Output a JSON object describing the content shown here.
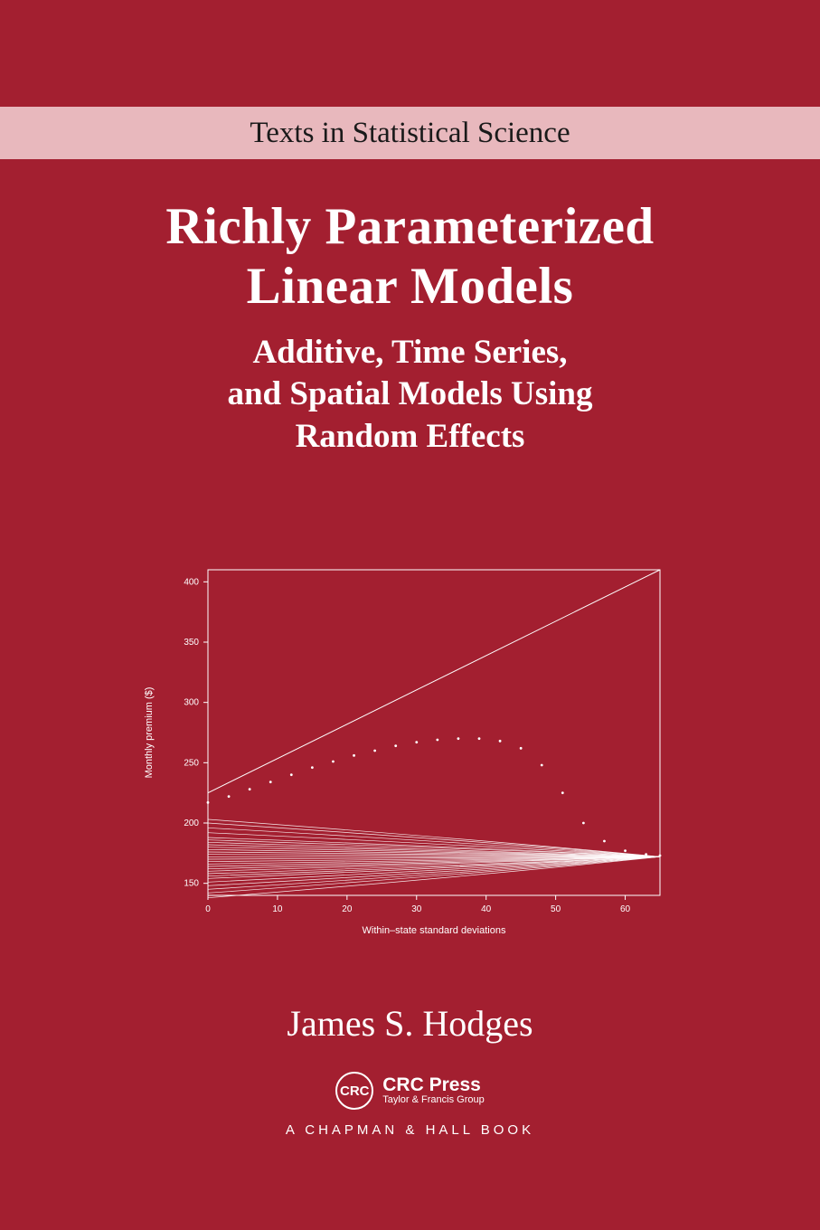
{
  "series": {
    "label": "Texts in Statistical Science"
  },
  "title": {
    "line1": "Richly Parameterized",
    "line2": "Linear Models",
    "sub1": "Additive, Time Series,",
    "sub2": "and Spatial Models Using",
    "sub3": "Random Effects"
  },
  "author": "James S. Hodges",
  "publisher": {
    "logo_text": "CRC",
    "name": "CRC Press",
    "tagline": "Taylor & Francis Group",
    "imprint": "A CHAPMAN & HALL BOOK"
  },
  "chart": {
    "type": "line",
    "xlabel": "Within–state standard deviations",
    "ylabel": "Monthly premium ($)",
    "xlim": [
      0,
      65
    ],
    "ylim": [
      140,
      410
    ],
    "xticks": [
      0,
      10,
      20,
      30,
      40,
      50,
      60
    ],
    "yticks": [
      150,
      200,
      250,
      300,
      350,
      400
    ],
    "background_color": "#a31f30",
    "line_color": "#ffffff",
    "axis_color": "#ffffff",
    "text_color": "#ffffff",
    "label_fontsize": 11,
    "tick_fontsize": 10,
    "upper_line": {
      "start": [
        0,
        225
      ],
      "end": [
        65,
        410
      ]
    },
    "dotted_curve": [
      [
        0,
        217
      ],
      [
        3,
        222
      ],
      [
        6,
        228
      ],
      [
        9,
        234
      ],
      [
        12,
        240
      ],
      [
        15,
        246
      ],
      [
        18,
        251
      ],
      [
        21,
        256
      ],
      [
        24,
        260
      ],
      [
        27,
        264
      ],
      [
        30,
        267
      ],
      [
        33,
        269
      ],
      [
        36,
        270
      ],
      [
        39,
        270
      ],
      [
        42,
        268
      ],
      [
        45,
        262
      ],
      [
        48,
        248
      ],
      [
        51,
        225
      ],
      [
        54,
        200
      ],
      [
        57,
        185
      ],
      [
        60,
        177
      ],
      [
        63,
        174
      ],
      [
        65,
        173
      ]
    ],
    "converging_lines_start_y": [
      138,
      142,
      145,
      148,
      151,
      154,
      156,
      158,
      160,
      162,
      164,
      166,
      168,
      170,
      172,
      174,
      176,
      178,
      180,
      182,
      184,
      186,
      188,
      192,
      196,
      200,
      203
    ],
    "converging_end": [
      65,
      172
    ]
  }
}
